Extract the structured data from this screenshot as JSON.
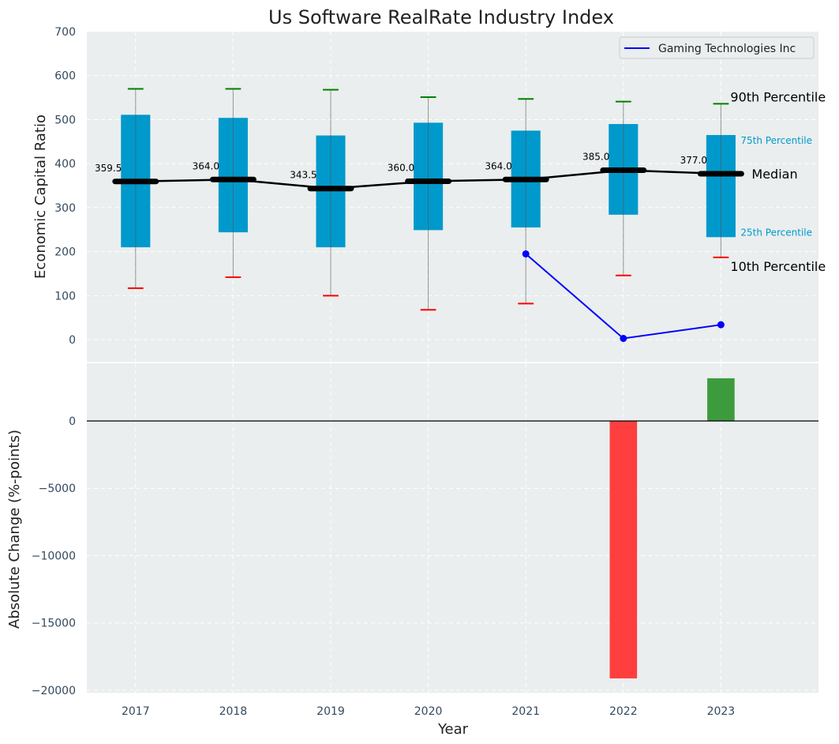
{
  "chart_data": [
    {
      "type": "box",
      "title": "Us Software RealRate Industry Index",
      "xlabel": "",
      "ylabel": "Economic Capital Ratio",
      "ylim": [
        -50,
        700
      ],
      "yticks": [
        0,
        100,
        200,
        300,
        400,
        500,
        600,
        700
      ],
      "x": [
        2017,
        2018,
        2019,
        2020,
        2021,
        2022,
        2023
      ],
      "p90": [
        570,
        570,
        568,
        551,
        547,
        541,
        536
      ],
      "p75": [
        511,
        504,
        464,
        493,
        475,
        490,
        465
      ],
      "median": [
        359.5,
        364.0,
        343.5,
        360.0,
        364.0,
        385.0,
        377.0
      ],
      "median_labels": [
        "359.5",
        "364.0",
        "343.5",
        "360.0",
        "364.0",
        "385.0",
        "377.0"
      ],
      "p25": [
        210,
        244,
        210,
        249,
        255,
        284,
        233
      ],
      "p10": [
        117,
        142,
        100,
        68,
        82,
        146,
        187
      ],
      "company_series": {
        "name": "Gaming Technologies Inc",
        "x": [
          2021,
          2022,
          2023
        ],
        "values": [
          195,
          3,
          34
        ]
      },
      "legend": {
        "position": "top-right",
        "entries": [
          "Gaming Technologies Inc"
        ]
      },
      "annotations": {
        "p90": "90th Percentile",
        "p75": "75th Percentile",
        "median": "Median",
        "p25": "25th Percentile",
        "p10": "10th Percentile"
      },
      "grid": true
    },
    {
      "type": "bar",
      "xlabel": "Year",
      "ylabel": "Absolute Change (%-points)",
      "ylim": [
        -20180,
        4280
      ],
      "yticks": [
        0,
        -5000,
        -10000,
        -15000,
        -20000
      ],
      "ytick_labels": [
        "0",
        "−5000",
        "−10000",
        "−15000",
        "−20000"
      ],
      "categories": [
        "2017",
        "2018",
        "2019",
        "2020",
        "2021",
        "2022",
        "2023"
      ],
      "values": [
        null,
        null,
        null,
        null,
        null,
        -19120,
        3170
      ],
      "grid": true
    }
  ],
  "colors": {
    "box": "#0099cc",
    "panel_bg": "#eaeeee",
    "p90_cap": "#008000",
    "p10_cap": "#ff0000",
    "company": "#0000ff",
    "neg_bar": "#ff3f3f",
    "pos_bar": "#3d9b3d",
    "tick_text": "#34495e"
  }
}
